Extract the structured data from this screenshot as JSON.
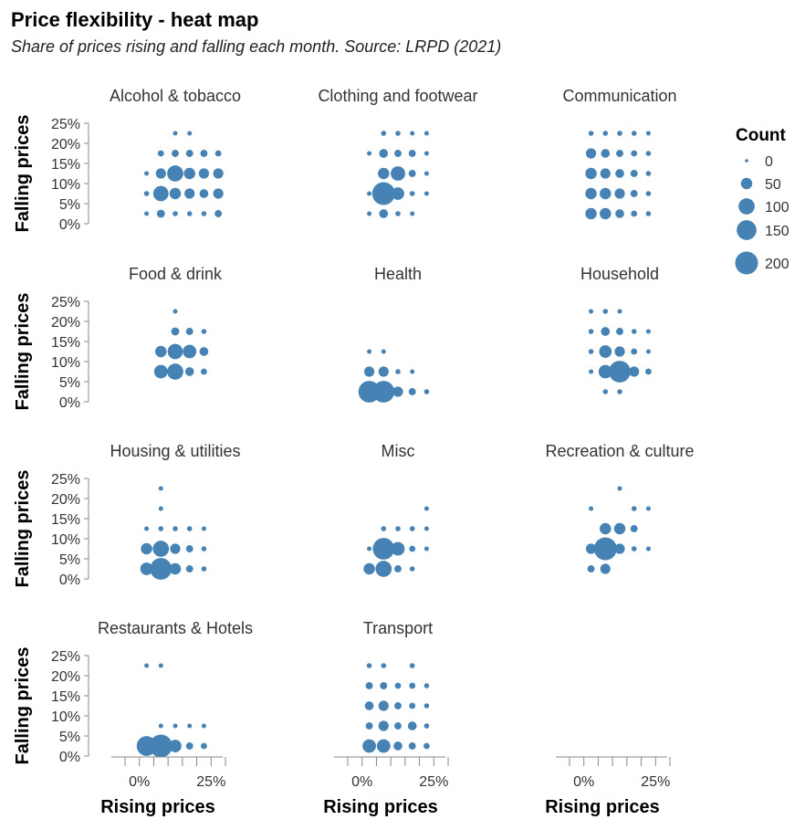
{
  "chart_data": {
    "type": "scatter",
    "title": "Price flexibility - heat map",
    "subtitle": "Share of prices rising and falling each month. Source: LRPD (2021)",
    "xlabel": "Rising prices",
    "ylabel": "Falling prices",
    "x_ticks": [
      "0%",
      "25%"
    ],
    "y_ticks": [
      "0%",
      "5%",
      "10%",
      "15%",
      "20%",
      "25%"
    ],
    "xlim": [
      -0.05,
      0.3
    ],
    "ylim": [
      0,
      0.25
    ],
    "size_legend": {
      "title": "Count",
      "values": [
        0,
        50,
        100,
        150,
        200
      ],
      "labels": [
        "0",
        "50",
        "100",
        "150",
        "200"
      ],
      "position": "right"
    },
    "color": "#4682b4",
    "panels": [
      {
        "name": "Alcohol & tobacco",
        "points": [
          [
            0.125,
            0.225,
            5
          ],
          [
            0.175,
            0.225,
            5
          ],
          [
            0.075,
            0.175,
            15
          ],
          [
            0.125,
            0.175,
            20
          ],
          [
            0.175,
            0.175,
            20
          ],
          [
            0.225,
            0.175,
            20
          ],
          [
            0.275,
            0.175,
            15
          ],
          [
            0.025,
            0.125,
            5
          ],
          [
            0.075,
            0.125,
            40
          ],
          [
            0.125,
            0.125,
            100
          ],
          [
            0.175,
            0.125,
            50
          ],
          [
            0.225,
            0.125,
            40
          ],
          [
            0.275,
            0.125,
            40
          ],
          [
            0.025,
            0.075,
            10
          ],
          [
            0.075,
            0.075,
            90
          ],
          [
            0.125,
            0.075,
            50
          ],
          [
            0.175,
            0.075,
            40
          ],
          [
            0.225,
            0.075,
            30
          ],
          [
            0.275,
            0.075,
            40
          ],
          [
            0.025,
            0.025,
            5
          ],
          [
            0.075,
            0.025,
            25
          ],
          [
            0.125,
            0.025,
            10
          ],
          [
            0.175,
            0.025,
            10
          ],
          [
            0.225,
            0.025,
            10
          ],
          [
            0.275,
            0.025,
            20
          ]
        ]
      },
      {
        "name": "Clothing and footwear",
        "points": [
          [
            0.075,
            0.225,
            10
          ],
          [
            0.125,
            0.225,
            10
          ],
          [
            0.175,
            0.225,
            8
          ],
          [
            0.225,
            0.225,
            5
          ],
          [
            0.025,
            0.175,
            5
          ],
          [
            0.075,
            0.175,
            30
          ],
          [
            0.125,
            0.175,
            20
          ],
          [
            0.175,
            0.175,
            20
          ],
          [
            0.225,
            0.175,
            5
          ],
          [
            0.075,
            0.125,
            50
          ],
          [
            0.125,
            0.125,
            80
          ],
          [
            0.175,
            0.125,
            20
          ],
          [
            0.225,
            0.125,
            5
          ],
          [
            0.025,
            0.075,
            5
          ],
          [
            0.075,
            0.075,
            200
          ],
          [
            0.125,
            0.075,
            60
          ],
          [
            0.175,
            0.075,
            10
          ],
          [
            0.225,
            0.075,
            5
          ],
          [
            0.025,
            0.025,
            5
          ],
          [
            0.075,
            0.025,
            30
          ],
          [
            0.125,
            0.025,
            10
          ],
          [
            0.175,
            0.025,
            8
          ]
        ]
      },
      {
        "name": "Communication",
        "points": [
          [
            0.025,
            0.225,
            10
          ],
          [
            0.075,
            0.225,
            10
          ],
          [
            0.125,
            0.225,
            10
          ],
          [
            0.175,
            0.225,
            10
          ],
          [
            0.225,
            0.225,
            5
          ],
          [
            0.025,
            0.175,
            40
          ],
          [
            0.075,
            0.175,
            30
          ],
          [
            0.125,
            0.175,
            20
          ],
          [
            0.175,
            0.175,
            15
          ],
          [
            0.225,
            0.175,
            10
          ],
          [
            0.025,
            0.125,
            50
          ],
          [
            0.075,
            0.125,
            40
          ],
          [
            0.125,
            0.125,
            30
          ],
          [
            0.175,
            0.125,
            20
          ],
          [
            0.225,
            0.125,
            10
          ],
          [
            0.025,
            0.075,
            50
          ],
          [
            0.075,
            0.075,
            50
          ],
          [
            0.125,
            0.075,
            40
          ],
          [
            0.175,
            0.075,
            20
          ],
          [
            0.225,
            0.075,
            10
          ],
          [
            0.025,
            0.025,
            50
          ],
          [
            0.075,
            0.025,
            50
          ],
          [
            0.125,
            0.025,
            30
          ],
          [
            0.175,
            0.025,
            15
          ],
          [
            0.225,
            0.025,
            10
          ]
        ]
      },
      {
        "name": "Food & drink",
        "points": [
          [
            0.125,
            0.225,
            5
          ],
          [
            0.125,
            0.175,
            25
          ],
          [
            0.175,
            0.175,
            20
          ],
          [
            0.225,
            0.175,
            10
          ],
          [
            0.075,
            0.125,
            50
          ],
          [
            0.125,
            0.125,
            90
          ],
          [
            0.175,
            0.125,
            70
          ],
          [
            0.225,
            0.125,
            30
          ],
          [
            0.075,
            0.075,
            70
          ],
          [
            0.125,
            0.075,
            100
          ],
          [
            0.175,
            0.075,
            30
          ],
          [
            0.225,
            0.075,
            15
          ]
        ]
      },
      {
        "name": "Health",
        "points": [
          [
            0.025,
            0.125,
            5
          ],
          [
            0.075,
            0.125,
            5
          ],
          [
            0.025,
            0.075,
            40
          ],
          [
            0.075,
            0.075,
            40
          ],
          [
            0.125,
            0.075,
            10
          ],
          [
            0.175,
            0.075,
            5
          ],
          [
            0.025,
            0.025,
            180
          ],
          [
            0.075,
            0.025,
            180
          ],
          [
            0.125,
            0.025,
            40
          ],
          [
            0.175,
            0.025,
            20
          ],
          [
            0.225,
            0.025,
            10
          ]
        ]
      },
      {
        "name": "Household",
        "points": [
          [
            0.025,
            0.225,
            5
          ],
          [
            0.075,
            0.225,
            10
          ],
          [
            0.125,
            0.225,
            5
          ],
          [
            0.025,
            0.175,
            10
          ],
          [
            0.075,
            0.175,
            30
          ],
          [
            0.125,
            0.175,
            20
          ],
          [
            0.175,
            0.175,
            10
          ],
          [
            0.225,
            0.175,
            5
          ],
          [
            0.025,
            0.125,
            10
          ],
          [
            0.075,
            0.125,
            60
          ],
          [
            0.125,
            0.125,
            40
          ],
          [
            0.175,
            0.125,
            15
          ],
          [
            0.225,
            0.125,
            5
          ],
          [
            0.025,
            0.075,
            5
          ],
          [
            0.075,
            0.075,
            70
          ],
          [
            0.125,
            0.075,
            180
          ],
          [
            0.175,
            0.075,
            40
          ],
          [
            0.225,
            0.075,
            15
          ],
          [
            0.075,
            0.025,
            10
          ],
          [
            0.125,
            0.025,
            10
          ]
        ]
      },
      {
        "name": "Housing & utilities",
        "points": [
          [
            0.075,
            0.225,
            5
          ],
          [
            0.075,
            0.175,
            5
          ],
          [
            0.025,
            0.125,
            8
          ],
          [
            0.075,
            0.125,
            10
          ],
          [
            0.125,
            0.125,
            10
          ],
          [
            0.175,
            0.125,
            10
          ],
          [
            0.225,
            0.125,
            5
          ],
          [
            0.025,
            0.075,
            50
          ],
          [
            0.075,
            0.075,
            100
          ],
          [
            0.125,
            0.075,
            40
          ],
          [
            0.175,
            0.075,
            20
          ],
          [
            0.225,
            0.075,
            10
          ],
          [
            0.025,
            0.025,
            60
          ],
          [
            0.075,
            0.025,
            180
          ],
          [
            0.125,
            0.025,
            50
          ],
          [
            0.175,
            0.025,
            20
          ],
          [
            0.225,
            0.025,
            10
          ]
        ]
      },
      {
        "name": "Misc",
        "points": [
          [
            0.225,
            0.175,
            5
          ],
          [
            0.075,
            0.125,
            10
          ],
          [
            0.125,
            0.125,
            10
          ],
          [
            0.175,
            0.125,
            10
          ],
          [
            0.225,
            0.125,
            5
          ],
          [
            0.025,
            0.075,
            5
          ],
          [
            0.075,
            0.075,
            180
          ],
          [
            0.125,
            0.075,
            70
          ],
          [
            0.175,
            0.075,
            15
          ],
          [
            0.225,
            0.075,
            5
          ],
          [
            0.025,
            0.025,
            50
          ],
          [
            0.075,
            0.025,
            100
          ],
          [
            0.125,
            0.025,
            20
          ],
          [
            0.175,
            0.025,
            10
          ]
        ]
      },
      {
        "name": "Recreation & culture",
        "points": [
          [
            0.125,
            0.225,
            5
          ],
          [
            0.025,
            0.175,
            5
          ],
          [
            0.175,
            0.175,
            10
          ],
          [
            0.225,
            0.175,
            5
          ],
          [
            0.075,
            0.125,
            50
          ],
          [
            0.125,
            0.125,
            50
          ],
          [
            0.175,
            0.125,
            20
          ],
          [
            0.025,
            0.075,
            40
          ],
          [
            0.075,
            0.075,
            200
          ],
          [
            0.125,
            0.075,
            40
          ],
          [
            0.175,
            0.075,
            10
          ],
          [
            0.225,
            0.075,
            5
          ],
          [
            0.025,
            0.025,
            20
          ],
          [
            0.075,
            0.025,
            40
          ]
        ]
      },
      {
        "name": "Restaurants & Hotels",
        "points": [
          [
            0.025,
            0.225,
            5
          ],
          [
            0.075,
            0.225,
            5
          ],
          [
            0.075,
            0.075,
            8
          ],
          [
            0.125,
            0.075,
            8
          ],
          [
            0.175,
            0.075,
            8
          ],
          [
            0.225,
            0.075,
            8
          ],
          [
            0.025,
            0.025,
            150
          ],
          [
            0.075,
            0.025,
            200
          ],
          [
            0.125,
            0.025,
            60
          ],
          [
            0.175,
            0.025,
            20
          ],
          [
            0.225,
            0.025,
            15
          ]
        ]
      },
      {
        "name": "Transport",
        "points": [
          [
            0.025,
            0.225,
            10
          ],
          [
            0.075,
            0.225,
            10
          ],
          [
            0.175,
            0.225,
            10
          ],
          [
            0.025,
            0.175,
            20
          ],
          [
            0.075,
            0.175,
            20
          ],
          [
            0.125,
            0.175,
            15
          ],
          [
            0.175,
            0.175,
            15
          ],
          [
            0.225,
            0.175,
            10
          ],
          [
            0.025,
            0.125,
            30
          ],
          [
            0.075,
            0.125,
            40
          ],
          [
            0.125,
            0.125,
            20
          ],
          [
            0.175,
            0.125,
            15
          ],
          [
            0.225,
            0.125,
            10
          ],
          [
            0.025,
            0.075,
            20
          ],
          [
            0.075,
            0.075,
            40
          ],
          [
            0.125,
            0.075,
            20
          ],
          [
            0.175,
            0.075,
            30
          ],
          [
            0.225,
            0.075,
            10
          ],
          [
            0.025,
            0.025,
            70
          ],
          [
            0.075,
            0.025,
            70
          ],
          [
            0.125,
            0.025,
            30
          ],
          [
            0.175,
            0.025,
            20
          ],
          [
            0.225,
            0.025,
            15
          ]
        ]
      }
    ]
  }
}
